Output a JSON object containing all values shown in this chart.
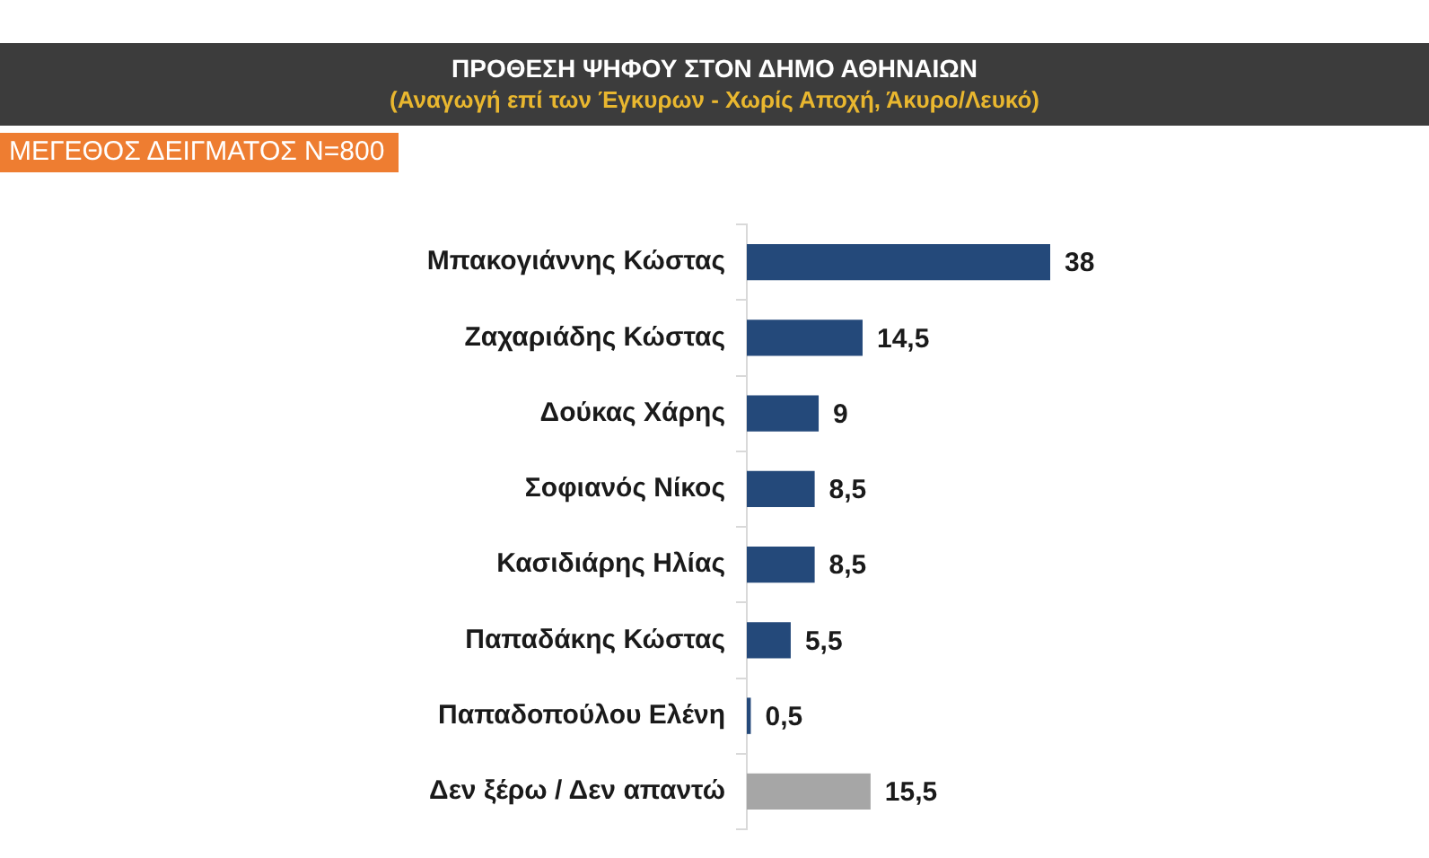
{
  "chart_data": {
    "type": "bar",
    "orientation": "horizontal",
    "title": "ΠΡΟΘΕΣΗ ΨΗΦΟΥ ΣΤΟΝ ΔΗΜΟ ΑΘΗΝΑΙΩΝ",
    "subtitle": "(Αναγωγή επί των Έγκυρων - Χωρίς Αποχή, Άκυρο/Λευκό)",
    "annotations": [
      "ΜΕΓΕΘΟΣ ΔΕΙΓΜΑΤΟΣ Ν=800"
    ],
    "categories": [
      "Μπακογιάννης Κώστας",
      "Ζαχαριάδης Κώστας",
      "Δούκας Χάρης",
      "Σοφιανός Νίκος",
      "Κασιδιάρης Ηλίας",
      "Παπαδάκης Κώστας",
      "Παπαδοπούλου Ελένη",
      "Δεν ξέρω / Δεν απαντώ"
    ],
    "values": [
      38,
      14.5,
      9,
      8.5,
      8.5,
      5.5,
      0.5,
      15.5
    ],
    "value_labels": [
      "38",
      "14,5",
      "9",
      "8,5",
      "8,5",
      "5,5",
      "0,5",
      "15,5"
    ],
    "colors": [
      "#24497a",
      "#24497a",
      "#24497a",
      "#24497a",
      "#24497a",
      "#24497a",
      "#24497a",
      "#a6a6a6"
    ],
    "tick_labels": "y"
  }
}
